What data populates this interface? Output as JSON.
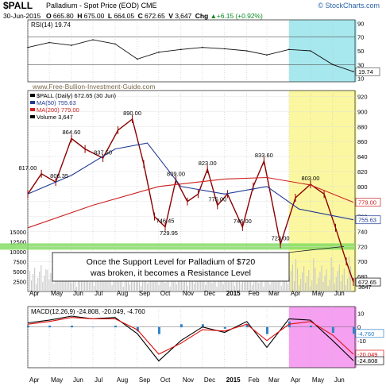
{
  "header": {
    "symbol": "$PALL",
    "name": "Palladium - Spot Price (EOD)",
    "exchange": "CME",
    "brand": "© StockCharts.com",
    "date": "30-Jun-2015",
    "open_label": "O",
    "open": "665.80",
    "high_label": "H",
    "high": "675.00",
    "low_label": "L",
    "low": "664.05",
    "close_label": "C",
    "close": "672.65",
    "volume_label": "V",
    "volume": "3,647",
    "chg_label": "Chg",
    "chg": "+6.15 (+0.92%)",
    "up_symbol": "▲"
  },
  "watermark": "www.Free-Bullion-Investment-Guide.com",
  "annotation": {
    "line1": "Once the Support Level for Palladium of $720",
    "line2": "was broken, it becomes a Resistance Level"
  },
  "colors": {
    "price": "#8b0000",
    "ma50": "#1f3a93",
    "ma200": "#cc2020",
    "support": "#7ddb5c",
    "rsi_highlight": "#a7e8ee",
    "price_highlight": "#fbf7a0",
    "macd_highlight": "#f5a0f0",
    "macd_line": "#000000",
    "signal_line": "#e01010",
    "histogram": "#2f82c8"
  },
  "chart_data": [
    {
      "type": "line",
      "panel": "rsi",
      "title": "RSI(14) 19.74",
      "y_ticks": [
        10,
        30,
        50,
        70,
        90
      ],
      "ylim": [
        5,
        95
      ],
      "reference_lines": [
        30,
        70
      ],
      "last_value": 19.74,
      "last_label": "19.74",
      "series": [
        {
          "x": [
            "2014-04-01",
            "2014-05-01",
            "2014-06-01",
            "2014-07-01",
            "2014-08-01",
            "2014-09-01",
            "2014-10-01",
            "2014-11-01",
            "2014-12-01",
            "2015-01-01",
            "2015-02-01",
            "2015-03-01",
            "2015-04-01",
            "2015-05-01",
            "2015-06-01",
            "2015-06-30"
          ],
          "values": [
            55,
            62,
            58,
            66,
            60,
            38,
            48,
            52,
            55,
            53,
            50,
            44,
            52,
            50,
            30,
            19.74
          ]
        }
      ]
    },
    {
      "type": "line",
      "panel": "price",
      "title": "$PALL (Daily) 672.65 (30 Jun)",
      "legend": [
        {
          "name": "$PALL (Daily) 672.65 (30 Jun)",
          "color": "#000000"
        },
        {
          "name": "MA(50) 755.63",
          "color": "#1f3a93"
        },
        {
          "name": "MA(200) 779.00",
          "color": "#cc2020"
        },
        {
          "name": "Volume 3,647",
          "color": "#000000"
        }
      ],
      "y_ticks": [
        680,
        700,
        720,
        740,
        760,
        780,
        800,
        820,
        840,
        860,
        880,
        900,
        920
      ],
      "ylim": [
        660,
        928
      ],
      "volume_ticks": [
        "2500",
        "5000",
        "7500",
        "10000",
        "12500",
        "15000"
      ],
      "support_level": 720,
      "annotations": [
        {
          "label": "817.00",
          "x": "2014-04-01",
          "y": 817
        },
        {
          "label": "806.35",
          "x": "2014-05-15",
          "y": 806.35
        },
        {
          "label": "864.60",
          "x": "2014-06-01",
          "y": 864.6
        },
        {
          "label": "837.50",
          "x": "2014-07-15",
          "y": 837.5
        },
        {
          "label": "890.00",
          "x": "2014-08-25",
          "y": 890
        },
        {
          "label": "809.00",
          "x": "2014-10-25",
          "y": 809
        },
        {
          "label": "746.45",
          "x": "2014-10-10",
          "y": 746.45
        },
        {
          "label": "729.95",
          "x": "2014-10-15",
          "y": 729.95
        },
        {
          "label": "823.00",
          "x": "2014-12-08",
          "y": 823
        },
        {
          "label": "775.00",
          "x": "2014-12-22",
          "y": 775
        },
        {
          "label": "746.00",
          "x": "2015-01-26",
          "y": 746
        },
        {
          "label": "833.60",
          "x": "2015-02-25",
          "y": 833.6
        },
        {
          "label": "803.00",
          "x": "2015-05-01",
          "y": 803
        },
        {
          "label": "723.00",
          "x": "2015-03-20",
          "y": 723
        }
      ],
      "last_labels": [
        {
          "label": "779.00",
          "y": 779,
          "color": "#cc2020"
        },
        {
          "label": "755.63",
          "y": 755.63,
          "color": "#1f3a93"
        },
        {
          "label": "672.65",
          "y": 672.65,
          "color": "#000000"
        }
      ],
      "volume_label": "3647",
      "series": [
        {
          "name": "$PALL",
          "x": [
            "2014-04-01",
            "2014-04-20",
            "2014-05-10",
            "2014-06-01",
            "2014-06-20",
            "2014-07-15",
            "2014-08-05",
            "2014-08-25",
            "2014-09-10",
            "2014-09-25",
            "2014-10-10",
            "2014-10-25",
            "2014-11-10",
            "2014-11-25",
            "2014-12-08",
            "2014-12-22",
            "2015-01-05",
            "2015-01-26",
            "2015-02-10",
            "2015-02-25",
            "2015-03-20",
            "2015-04-10",
            "2015-05-01",
            "2015-05-20",
            "2015-06-05",
            "2015-06-20",
            "2015-06-30"
          ],
          "values": [
            790,
            817,
            806,
            864,
            850,
            838,
            875,
            890,
            830,
            760,
            746,
            809,
            780,
            790,
            823,
            775,
            790,
            746,
            800,
            834,
            723,
            785,
            803,
            790,
            745,
            700,
            672.65
          ]
        },
        {
          "name": "MA(50)",
          "x": [
            "2014-04-01",
            "2014-06-01",
            "2014-08-01",
            "2014-09-15",
            "2014-11-01",
            "2015-01-01",
            "2015-03-01",
            "2015-04-15",
            "2015-06-30"
          ],
          "values": [
            790,
            815,
            850,
            858,
            800,
            790,
            800,
            770,
            755.63
          ]
        },
        {
          "name": "MA(200)",
          "x": [
            "2014-04-01",
            "2014-07-01",
            "2014-10-01",
            "2015-01-01",
            "2015-03-01",
            "2015-05-01",
            "2015-06-30"
          ],
          "values": [
            745,
            775,
            800,
            810,
            812,
            802,
            779
          ]
        }
      ]
    },
    {
      "type": "line",
      "panel": "macd",
      "title": "MACD(12,26,9) -24.808, -20.049, -4.760",
      "y_ticks": [
        -20,
        -10,
        0,
        10
      ],
      "ylim": [
        -30,
        15
      ],
      "last_labels": [
        {
          "label": "-4.760",
          "y": -4.76,
          "color": "#2f82c8"
        },
        {
          "label": "-20.049",
          "y": -20.049,
          "color": "#e01010"
        },
        {
          "label": "-24.808",
          "y": -24.808,
          "color": "#000000"
        }
      ],
      "series": [
        {
          "name": "MACD",
          "x": [
            "2014-04-01",
            "2014-05-01",
            "2014-06-01",
            "2014-07-01",
            "2014-08-01",
            "2014-09-01",
            "2014-10-01",
            "2014-11-01",
            "2014-12-01",
            "2015-01-01",
            "2015-02-01",
            "2015-03-01",
            "2015-04-01",
            "2015-05-01",
            "2015-06-01",
            "2015-06-30"
          ],
          "values": [
            3,
            5,
            8,
            6,
            7,
            -5,
            -25,
            -10,
            0,
            -4,
            4,
            -15,
            6,
            5,
            -10,
            -24.808
          ]
        },
        {
          "name": "Signal",
          "x": [
            "2014-04-01",
            "2014-05-01",
            "2014-06-01",
            "2014-07-01",
            "2014-08-01",
            "2014-09-01",
            "2014-10-01",
            "2014-11-01",
            "2014-12-01",
            "2015-01-01",
            "2015-02-01",
            "2015-03-01",
            "2015-04-01",
            "2015-05-01",
            "2015-06-01",
            "2015-06-30"
          ],
          "values": [
            2,
            4,
            7,
            6,
            6,
            -2,
            -20,
            -12,
            -2,
            -3,
            2,
            -10,
            2,
            4,
            -6,
            -20.049
          ]
        }
      ]
    }
  ],
  "x_axis": {
    "months": [
      {
        "label": "Apr",
        "date": "2014-04-01"
      },
      {
        "label": "May",
        "date": "2014-05-01"
      },
      {
        "label": "Jun",
        "date": "2014-06-01"
      },
      {
        "label": "Jul",
        "date": "2014-07-01"
      },
      {
        "label": "Aug",
        "date": "2014-08-01"
      },
      {
        "label": "Sep",
        "date": "2014-09-01"
      },
      {
        "label": "Oct",
        "date": "2014-10-01"
      },
      {
        "label": "Nov",
        "date": "2014-11-01"
      },
      {
        "label": "Dec",
        "date": "2014-12-01"
      },
      {
        "label": "2015",
        "date": "2015-01-01",
        "bold": true
      },
      {
        "label": "Feb",
        "date": "2015-02-01"
      },
      {
        "label": "Mar",
        "date": "2015-03-01"
      },
      {
        "label": "Apr",
        "date": "2015-04-01"
      },
      {
        "label": "May",
        "date": "2015-05-01"
      },
      {
        "label": "Jun",
        "date": "2015-06-01"
      }
    ],
    "highlight_start": "2015-04-01",
    "highlight_end": "2015-06-30"
  }
}
